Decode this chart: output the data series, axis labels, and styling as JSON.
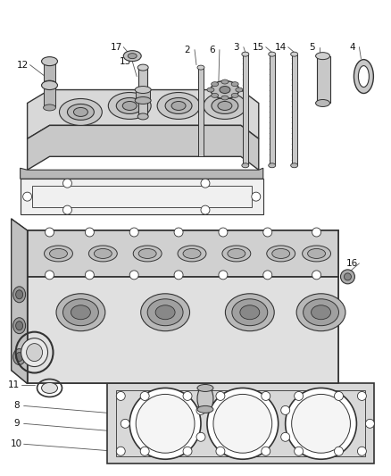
{
  "bg_color": "#ffffff",
  "line_color": "#333333",
  "label_color": "#111111",
  "fig_width": 4.39,
  "fig_height": 5.33,
  "dpi": 100
}
